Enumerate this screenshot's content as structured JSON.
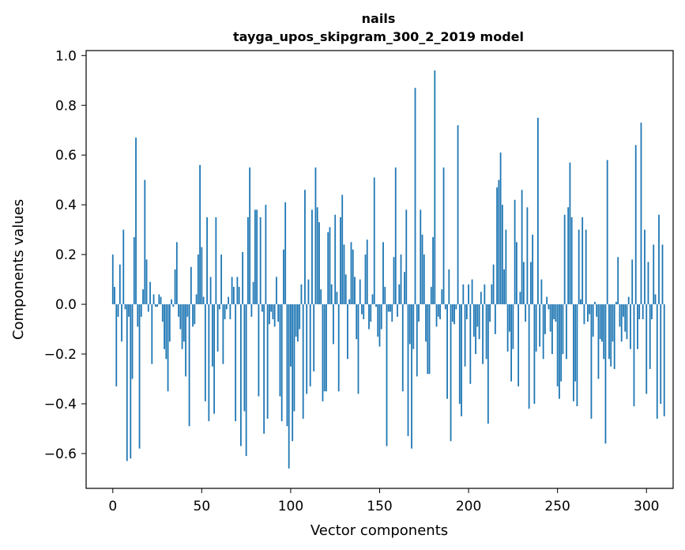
{
  "chart_data": {
    "type": "bar",
    "title": "nails",
    "subtitle": "tayga_upos_skipgram_300_2_2019 model",
    "xlabel": "Vector components",
    "ylabel": "Components values",
    "xlim": [
      -15,
      315
    ],
    "ylim": [
      -0.74,
      1.02
    ],
    "xticks": [
      0,
      50,
      100,
      150,
      200,
      250,
      300
    ],
    "yticks": [
      -0.6,
      -0.4,
      -0.2,
      0.0,
      0.2,
      0.4,
      0.6,
      0.8,
      1.0
    ],
    "ytick_labels": [
      "−0.6",
      "−0.4",
      "−0.2",
      "0.0",
      "0.2",
      "0.4",
      "0.6",
      "0.8",
      "1.0"
    ],
    "bar_color": "#1f77b4",
    "values": [
      0.2,
      0.07,
      -0.33,
      -0.05,
      0.16,
      -0.15,
      0.3,
      -0.02,
      -0.63,
      -0.05,
      -0.62,
      -0.3,
      0.27,
      0.67,
      -0.09,
      -0.58,
      -0.05,
      0.06,
      0.5,
      0.18,
      -0.03,
      0.09,
      -0.24,
      0.04,
      -0.01,
      -0.01,
      0.04,
      0.03,
      -0.07,
      -0.18,
      -0.22,
      -0.35,
      -0.15,
      0.02,
      -0.01,
      0.14,
      0.25,
      -0.05,
      -0.1,
      -0.18,
      -0.15,
      -0.29,
      -0.05,
      -0.49,
      0.15,
      -0.09,
      -0.08,
      0.04,
      0.2,
      0.56,
      0.23,
      0.03,
      -0.39,
      0.35,
      -0.47,
      0.11,
      -0.25,
      -0.44,
      0.35,
      -0.19,
      -0.02,
      0.2,
      -0.24,
      -0.06,
      -0.02,
      0.03,
      -0.06,
      0.11,
      0.07,
      -0.47,
      0.11,
      0.07,
      -0.57,
      0.21,
      -0.43,
      -0.61,
      0.35,
      0.55,
      -0.05,
      0.09,
      0.38,
      0.38,
      -0.37,
      0.35,
      -0.03,
      -0.52,
      0.4,
      -0.46,
      -0.08,
      -0.03,
      -0.06,
      -0.09,
      0.11,
      -0.07,
      -0.37,
      -0.47,
      0.22,
      0.41,
      -0.49,
      -0.66,
      -0.25,
      -0.55,
      -0.43,
      -0.13,
      -0.15,
      -0.1,
      0.08,
      -0.46,
      0.46,
      -0.36,
      0.1,
      -0.33,
      0.38,
      -0.27,
      0.55,
      0.39,
      0.33,
      0.06,
      -0.39,
      -0.35,
      -0.35,
      0.29,
      0.31,
      0.08,
      -0.16,
      0.36,
      0.05,
      -0.35,
      0.35,
      0.44,
      0.24,
      0.12,
      -0.22,
      0.02,
      0.25,
      0.22,
      0.11,
      -0.14,
      -0.36,
      0.1,
      -0.04,
      -0.06,
      0.2,
      0.26,
      -0.1,
      -0.07,
      0.04,
      0.51,
      -0.01,
      -0.13,
      -0.17,
      -0.1,
      0.25,
      0.07,
      -0.57,
      -0.03,
      -0.03,
      -0.07,
      0.19,
      0.55,
      -0.05,
      0.08,
      0.2,
      -0.35,
      0.13,
      0.38,
      -0.53,
      -0.16,
      -0.58,
      -0.18,
      0.87,
      -0.29,
      -0.07,
      0.38,
      0.28,
      0.2,
      -0.15,
      -0.28,
      -0.28,
      0.07,
      0.27,
      0.94,
      -0.09,
      -0.05,
      -0.06,
      0.06,
      0.55,
      -0.02,
      -0.38,
      0.14,
      -0.55,
      -0.07,
      -0.08,
      -0.02,
      0.72,
      -0.4,
      -0.45,
      0.08,
      -0.25,
      -0.06,
      0.08,
      -0.32,
      0.1,
      -0.13,
      -0.2,
      -0.09,
      -0.14,
      0.05,
      -0.24,
      0.08,
      -0.22,
      -0.48,
      -0.07,
      0.08,
      0.16,
      -0.12,
      0.47,
      0.5,
      0.61,
      0.4,
      0.14,
      0.3,
      -0.19,
      -0.11,
      -0.31,
      -0.18,
      0.42,
      0.25,
      -0.33,
      0.05,
      0.46,
      0.17,
      -0.07,
      0.39,
      -0.42,
      0.17,
      0.28,
      -0.4,
      -0.19,
      0.75,
      -0.17,
      0.1,
      -0.22,
      -0.12,
      0.03,
      -0.02,
      -0.11,
      -0.2,
      -0.06,
      -0.07,
      -0.33,
      -0.38,
      -0.31,
      -0.2,
      0.36,
      -0.22,
      0.39,
      0.57,
      0.35,
      -0.39,
      -0.31,
      -0.41,
      0.3,
      0.02,
      0.35,
      -0.08,
      0.3,
      -0.07,
      -0.04,
      -0.46,
      -0.13,
      0.01,
      -0.05,
      -0.3,
      -0.14,
      -0.15,
      -0.22,
      -0.56,
      0.58,
      -0.22,
      -0.25,
      -0.15,
      -0.26,
      0.01,
      0.19,
      -0.09,
      -0.15,
      -0.05,
      -0.11,
      -0.14,
      0.03,
      -0.18,
      0.18,
      -0.41,
      0.64,
      -0.18,
      -0.06,
      0.73,
      -0.06,
      0.3,
      -0.36,
      0.17,
      -0.26,
      -0.06,
      0.24,
      0.04,
      -0.46,
      0.36,
      -0.4,
      0.24,
      -0.45
    ]
  }
}
